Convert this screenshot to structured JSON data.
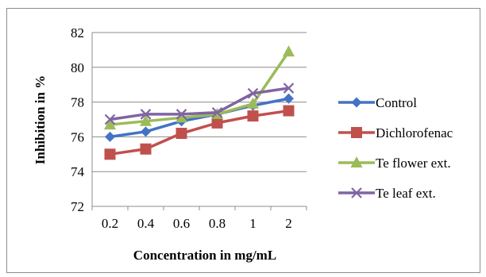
{
  "chart_data": {
    "type": "line",
    "title": "",
    "xlabel": "Concentration in mg/mL",
    "ylabel": "Inhibition  in  %",
    "categories": [
      "0.2",
      "0.4",
      "0.6",
      "0.8",
      "1",
      "2"
    ],
    "ylim": [
      72,
      82
    ],
    "yticks": [
      "72",
      "74",
      "76",
      "78",
      "80",
      "82"
    ],
    "grid": "horizontal",
    "legend_position": "right",
    "series": [
      {
        "name": "Control",
        "color": "#4472c4",
        "marker": "diamond",
        "values": [
          76.0,
          76.3,
          76.9,
          77.3,
          77.8,
          78.2
        ]
      },
      {
        "name": "Dichlorofenac",
        "color": "#c0504d",
        "marker": "square",
        "values": [
          75.0,
          75.3,
          76.2,
          76.8,
          77.2,
          77.5
        ]
      },
      {
        "name": "Te flower ext.",
        "color": "#9bbb59",
        "marker": "triangle",
        "values": [
          76.7,
          76.9,
          77.1,
          77.3,
          77.9,
          80.9
        ]
      },
      {
        "name": "Te leaf  ext.",
        "color": "#8064a2",
        "marker": "x",
        "values": [
          77.0,
          77.3,
          77.3,
          77.4,
          78.5,
          78.8
        ]
      }
    ]
  }
}
